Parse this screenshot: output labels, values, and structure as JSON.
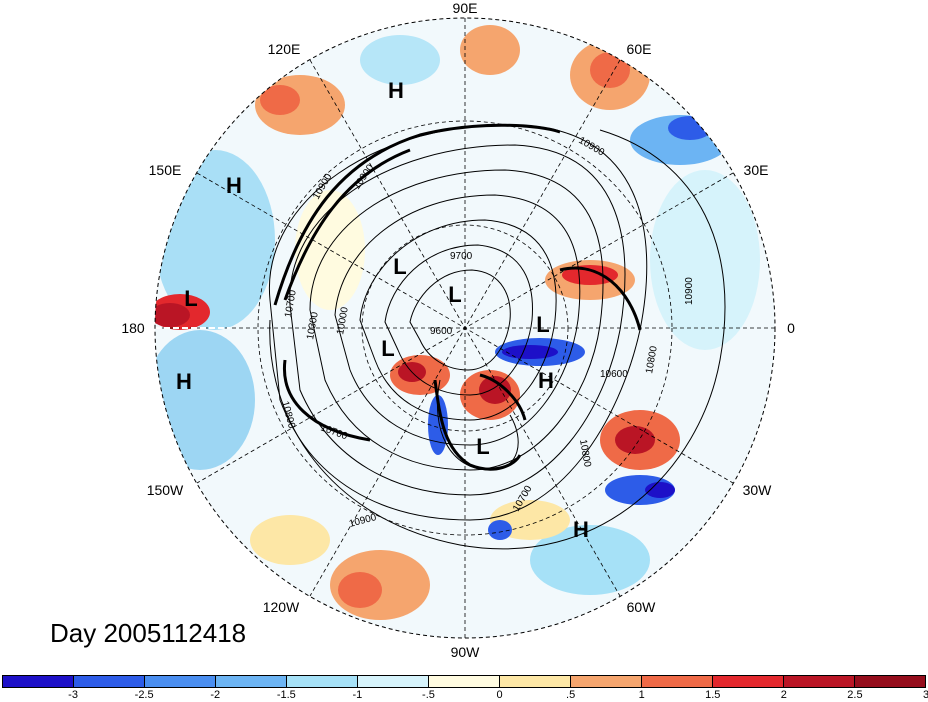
{
  "map": {
    "longitude_labels": [
      "90E",
      "60E",
      "30E",
      "0",
      "30W",
      "60W",
      "90W",
      "120W",
      "150W",
      "180",
      "150E",
      "120E"
    ],
    "pressure_systems": [
      {
        "type": "H"
      },
      {
        "type": "H"
      },
      {
        "type": "L"
      },
      {
        "type": "H"
      },
      {
        "type": "L"
      },
      {
        "type": "L"
      },
      {
        "type": "L"
      },
      {
        "type": "L"
      },
      {
        "type": "H"
      },
      {
        "type": "L"
      },
      {
        "type": "H"
      }
    ],
    "contour_labels": [
      "10900",
      "10900",
      "10900",
      "10900",
      "9700",
      "9600",
      "10000",
      "10300",
      "10700",
      "10800",
      "10700",
      "10800",
      "10600",
      "10800",
      "10700",
      "10900"
    ]
  },
  "title": "Day 2005112418",
  "colorbar": {
    "colors": [
      "#1d10c8",
      "#2d5ce8",
      "#4a8ef0",
      "#6cb4f3",
      "#a6e1f7",
      "#d6f3fb",
      "#fffbe0",
      "#fde7a6",
      "#f5a56e",
      "#ef6a47",
      "#e3282d",
      "#ba1525",
      "#950d1c"
    ],
    "tick_labels": [
      "-3",
      "-2.5",
      "-2",
      "-1.5",
      "-1",
      "-.5",
      "0",
      ".5",
      "1",
      "1.5",
      "2",
      "2.5",
      "3"
    ]
  }
}
